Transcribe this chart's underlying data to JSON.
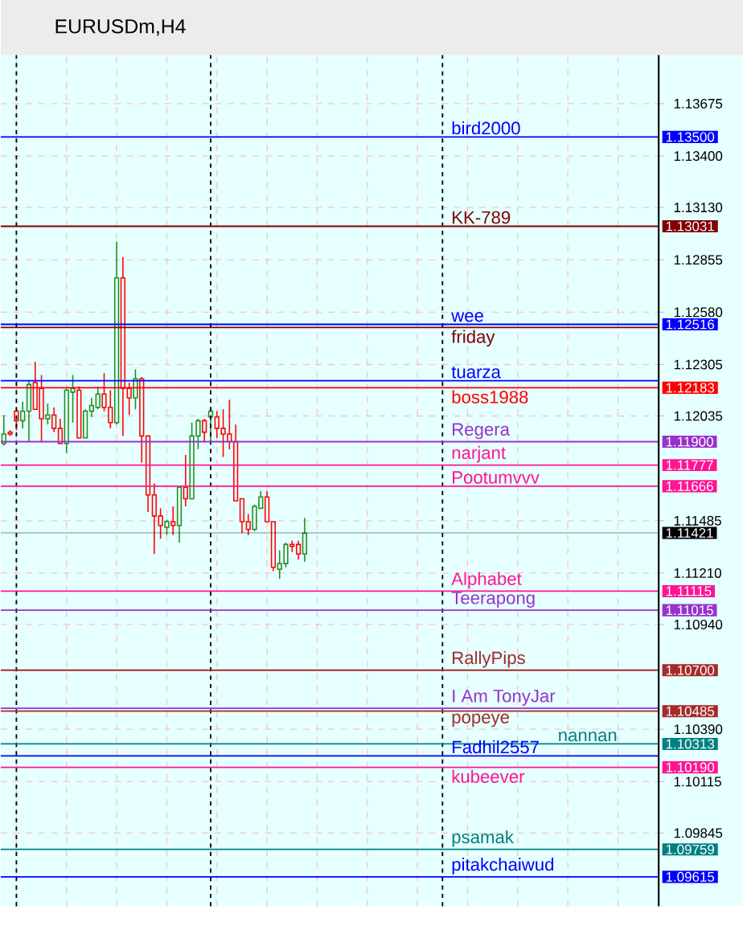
{
  "chart_data": {
    "type": "candlestick",
    "title": "EURUSDm,H4",
    "categories": [
      null,
      null,
      null,
      null,
      null,
      null,
      null,
      null,
      null,
      null,
      null,
      null,
      null,
      null,
      null,
      null,
      null,
      null,
      null,
      null,
      null,
      null,
      null,
      null,
      null,
      null,
      null,
      null,
      null,
      null,
      null,
      null,
      null,
      null,
      null,
      null,
      null,
      null,
      null,
      null,
      null,
      null,
      null,
      null,
      null,
      null,
      null,
      null,
      null,
      null,
      null,
      null,
      null,
      null,
      null,
      null,
      null,
      null,
      null,
      null,
      null,
      null,
      null,
      null,
      null,
      null,
      null,
      null,
      null,
      null,
      null,
      null,
      null,
      null,
      null,
      null,
      null,
      null,
      null,
      null,
      null,
      null,
      null,
      null,
      null,
      null,
      null,
      null,
      null,
      null,
      null,
      null,
      null,
      null,
      null,
      null,
      null,
      null,
      null,
      null,
      null,
      null,
      null,
      null,
      null
    ],
    "ohlc": [
      [
        1.1189,
        1.1204,
        1.1188,
        1.1194
      ],
      [
        1.1195,
        1.1196,
        1.1193,
        1.1194
      ],
      [
        1.1206,
        1.1207,
        1.1196,
        1.1201
      ],
      [
        1.1201,
        1.1211,
        1.1197,
        1.1206
      ],
      [
        1.1206,
        1.1222,
        1.119,
        1.122
      ],
      [
        1.1221,
        1.1232,
        1.1207,
        1.1207
      ],
      [
        1.1218,
        1.1225,
        1.119,
        1.1202
      ],
      [
        1.1202,
        1.121,
        1.1199,
        1.1204
      ],
      [
        1.1204,
        1.1208,
        1.1195,
        1.1197
      ],
      [
        1.1197,
        1.1202,
        1.1189,
        1.1189
      ],
      [
        1.1189,
        1.1218,
        1.1184,
        1.1217
      ],
      [
        1.1216,
        1.1225,
        1.12,
        1.1218
      ],
      [
        1.1217,
        1.1219,
        1.1192,
        1.1192
      ],
      [
        1.1192,
        1.1207,
        1.1192,
        1.1206
      ],
      [
        1.1206,
        1.1213,
        1.1203,
        1.1209
      ],
      [
        1.1208,
        1.1219,
        1.1207,
        1.1215
      ],
      [
        1.1215,
        1.1226,
        1.1206,
        1.1208
      ],
      [
        1.1208,
        1.1217,
        1.1197,
        1.12
      ],
      [
        1.12,
        1.1295,
        1.1199,
        1.1276
      ],
      [
        1.1276,
        1.1287,
        1.1193,
        1.1218
      ],
      [
        1.1218,
        1.1221,
        1.1204,
        1.1213
      ],
      [
        1.1213,
        1.1228,
        1.1207,
        1.1223
      ],
      [
        1.1223,
        1.1224,
        1.1179,
        1.1193
      ],
      [
        1.1193,
        1.1193,
        1.1153,
        1.1162
      ],
      [
        1.1162,
        1.1168,
        1.1131,
        1.1151
      ],
      [
        1.1151,
        1.1155,
        1.1139,
        1.1146
      ],
      [
        1.1145,
        1.1149,
        1.1141,
        1.1148
      ],
      [
        1.1148,
        1.1156,
        1.1141,
        1.1146
      ],
      [
        1.1146,
        1.1166,
        1.1137,
        1.1166
      ],
      [
        1.1166,
        1.1183,
        1.1156,
        1.116
      ],
      [
        1.116,
        1.12,
        1.116,
        1.1193
      ],
      [
        1.1193,
        1.1202,
        1.1186,
        1.1201
      ],
      [
        1.1201,
        1.1202,
        1.119,
        1.1195
      ],
      [
        1.1203,
        1.1208,
        1.119,
        1.1206
      ],
      [
        1.1203,
        1.1206,
        1.1192,
        1.1197
      ],
      [
        1.1197,
        1.1207,
        1.1182,
        1.1194
      ],
      [
        1.1194,
        1.1212,
        1.1186,
        1.119
      ],
      [
        1.119,
        1.1199,
        1.1159,
        1.1159
      ],
      [
        1.116,
        1.116,
        1.1142,
        1.1148
      ],
      [
        1.1148,
        1.1152,
        1.1141,
        1.1144
      ],
      [
        1.1144,
        1.1157,
        1.1143,
        1.1156
      ],
      [
        1.1155,
        1.1164,
        1.1155,
        1.1161
      ],
      [
        1.1161,
        1.1164,
        1.1148,
        1.1148
      ],
      [
        1.1148,
        1.1148,
        1.1122,
        1.1124
      ],
      [
        1.1123,
        1.1133,
        1.1118,
        1.1126
      ],
      [
        1.1126,
        1.1137,
        1.1124,
        1.1136
      ],
      [
        1.1136,
        1.1138,
        1.1132,
        1.1135
      ],
      [
        1.1136,
        1.1138,
        1.1128,
        1.1131
      ],
      [
        1.1131,
        1.115,
        1.1127,
        1.1142
      ],
      null,
      null,
      null,
      null,
      null,
      null,
      null,
      null,
      null,
      null,
      null,
      null,
      null,
      null,
      null,
      null,
      null,
      null,
      null,
      null,
      null,
      null,
      null,
      null,
      null,
      null,
      null,
      null,
      null,
      null,
      null,
      null,
      null,
      null,
      null,
      null,
      null,
      null,
      null,
      null,
      null,
      null,
      null,
      null,
      null,
      null,
      null,
      null,
      null,
      null,
      null,
      null,
      null,
      null,
      null,
      null
    ],
    "ylim": [
      1.0946,
      1.1393
    ],
    "yticks": [
      {
        "value": 1.13675,
        "label": "1.13675"
      },
      {
        "value": 1.134,
        "label": "1.13400"
      },
      {
        "value": 1.1313,
        "label": "1.13130"
      },
      {
        "value": 1.12855,
        "label": "1.12855"
      },
      {
        "value": 1.1258,
        "label": "1.12580"
      },
      {
        "value": 1.12305,
        "label": "1.12305"
      },
      {
        "value": 1.12035,
        "label": "1.12035"
      },
      {
        "value": 1.11485,
        "label": "1.11485"
      },
      {
        "value": 1.1121,
        "label": "1.11210"
      },
      {
        "value": 1.1094,
        "label": "1.10940"
      },
      {
        "value": 1.1039,
        "label": "1.10390"
      },
      {
        "value": 1.10115,
        "label": "1.10115"
      },
      {
        "value": 1.09845,
        "label": "1.09845"
      }
    ],
    "tick_labels": "y",
    "grid": true,
    "ref_lines": [
      {
        "axis": "y",
        "value": 1.135,
        "label": "bird2000",
        "color": "#0000ff"
      },
      {
        "axis": "y",
        "value": 1.13031,
        "label": "KK-789",
        "color": "#800000"
      },
      {
        "axis": "y",
        "value": 1.12516,
        "label": "wee",
        "color": "#0000ff"
      },
      {
        "axis": "y",
        "value": 1.12183,
        "label": "boss1988",
        "color": "#ff0000"
      },
      {
        "axis": "y",
        "value": 1.119,
        "label": "Regera",
        "color": "#9932cc"
      },
      {
        "axis": "y",
        "value": 1.11777,
        "label": "narjant",
        "color": "#ff1493"
      },
      {
        "axis": "y",
        "value": 1.11666,
        "label": "Pootumvvv",
        "color": "#ff1493"
      },
      {
        "axis": "y",
        "value": 1.11421,
        "color": "#000000"
      },
      {
        "axis": "y",
        "value": 1.11115,
        "label": "Alphabet",
        "color": "#ff1493"
      },
      {
        "axis": "y",
        "value": 1.11015,
        "label": "Teerapong",
        "color": "#9932cc"
      },
      {
        "axis": "y",
        "value": 1.107,
        "label": "RallyPips",
        "color": "#a52a2a"
      },
      {
        "axis": "y",
        "value": 1.10485,
        "label": "popeye",
        "color": "#a52a2a"
      },
      {
        "axis": "y",
        "value": 1.10313,
        "label": "nannan",
        "color": "#008080"
      },
      {
        "axis": "y",
        "value": 1.1019,
        "label": "kubeever",
        "color": "#ff1493"
      },
      {
        "axis": "y",
        "value": 1.09759,
        "label": "psamak",
        "color": "#008080"
      },
      {
        "axis": "y",
        "value": 1.09615,
        "label": "pitakchaiwud",
        "color": "#0000ff"
      },
      {
        "axis": "y",
        "value": 1.125,
        "label": "friday",
        "color": "#800000"
      },
      {
        "axis": "y",
        "value": 1.1222,
        "label": "tuarza",
        "color": "#0000ff"
      },
      {
        "axis": "y",
        "value": 1.105,
        "label": "I Am TonyJar",
        "color": "#9932cc"
      },
      {
        "axis": "y",
        "value": 1.1025,
        "label": "Fadhil2557",
        "color": "#0000ff"
      }
    ],
    "annotations": [
      "1.13500",
      "1.13031",
      "1.12516",
      "1.12183",
      "1.11900",
      "1.11777",
      "1.11666",
      "1.11421",
      "1.11115",
      "1.11015",
      "1.10700",
      "1.10485",
      "1.10313",
      "1.10190",
      "1.09759",
      "1.09615"
    ]
  }
}
